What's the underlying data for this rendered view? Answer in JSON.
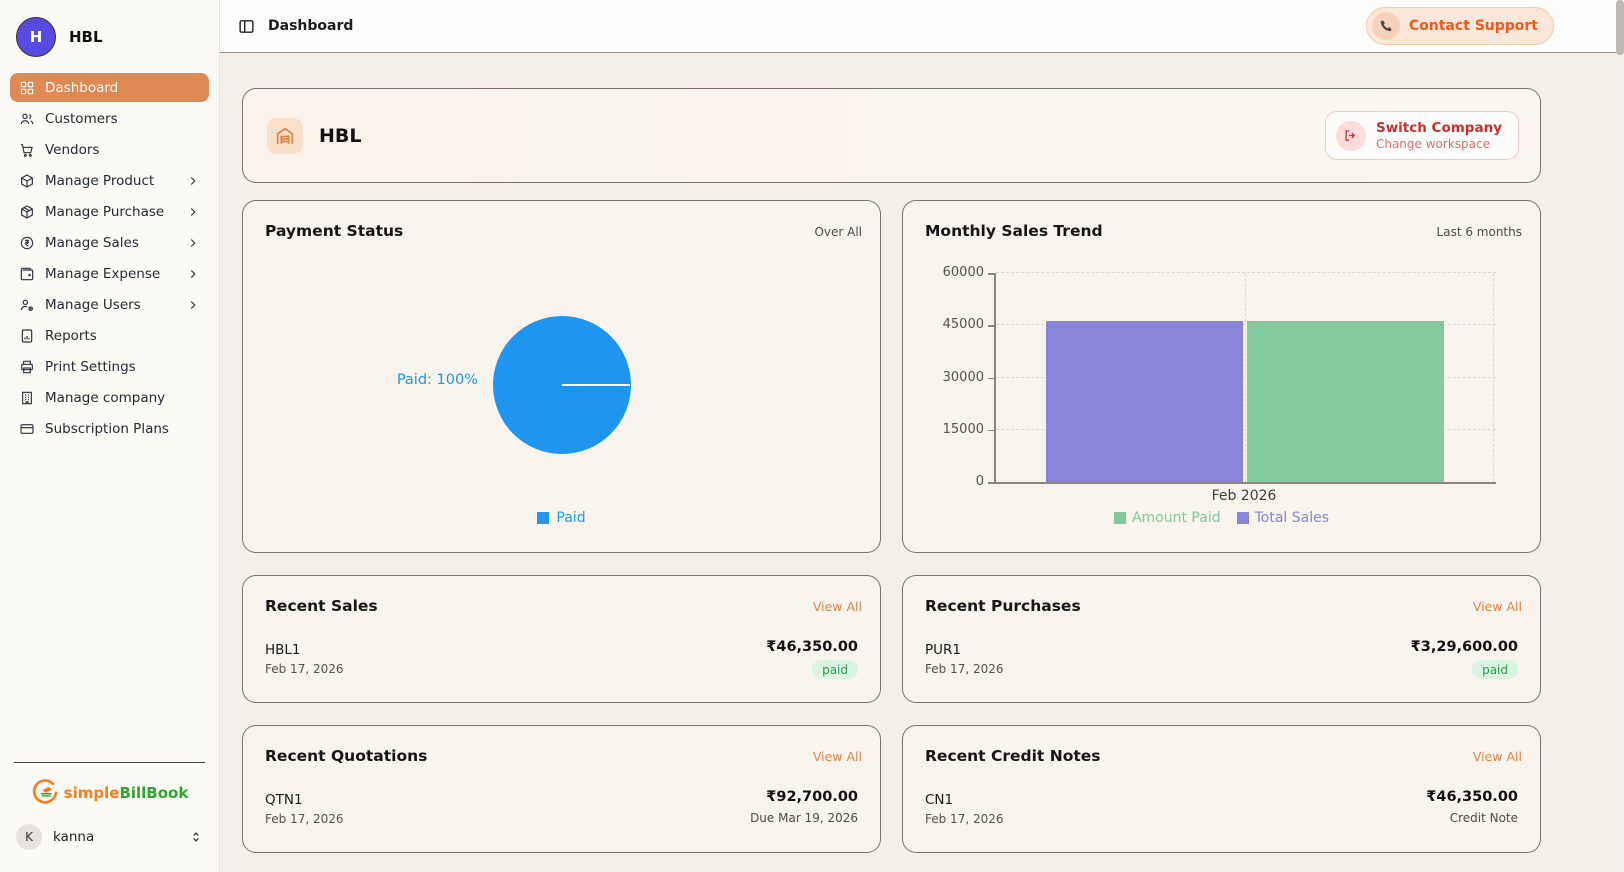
{
  "sidebar": {
    "company_initial": "H",
    "company_name": "HBL",
    "items": [
      {
        "label": "Dashboard",
        "active": true
      },
      {
        "label": "Customers"
      },
      {
        "label": "Vendors"
      },
      {
        "label": "Manage Product",
        "expandable": true
      },
      {
        "label": "Manage Purchase",
        "expandable": true
      },
      {
        "label": "Manage Sales",
        "expandable": true
      },
      {
        "label": "Manage Expense",
        "expandable": true
      },
      {
        "label": "Manage Users",
        "expandable": true
      },
      {
        "label": "Reports"
      },
      {
        "label": "Print Settings"
      },
      {
        "label": "Manage company"
      },
      {
        "label": "Subscription Plans"
      }
    ],
    "logo": {
      "first": "simple",
      "second": "BillBook"
    },
    "user": {
      "initial": "K",
      "name": "kanna"
    }
  },
  "topbar": {
    "breadcrumb": "Dashboard",
    "support_label": "Contact Support"
  },
  "company_card": {
    "name": "HBL",
    "switch_title": "Switch Company",
    "switch_subtitle": "Change workspace"
  },
  "cards": {
    "payment_status": {
      "title": "Payment Status",
      "period": "Over All",
      "slice_label": "Paid: 100%",
      "legend_label": "Paid"
    },
    "monthly_sales": {
      "title": "Monthly Sales Trend",
      "period": "Last 6 months"
    },
    "recent_sales": {
      "title": "Recent Sales",
      "view_all": "View All",
      "entry": {
        "id": "HBL1",
        "date": "Feb 17, 2026",
        "amount": "₹46,350.00",
        "status": "paid"
      }
    },
    "recent_purchases": {
      "title": "Recent Purchases",
      "view_all": "View All",
      "entry": {
        "id": "PUR1",
        "date": "Feb 17, 2026",
        "amount": "₹3,29,600.00",
        "status": "paid"
      }
    },
    "recent_quotations": {
      "title": "Recent Quotations",
      "view_all": "View All",
      "entry": {
        "id": "QTN1",
        "date": "Feb 17, 2026",
        "amount": "₹92,700.00",
        "subtext": "Due Mar 19, 2026"
      }
    },
    "recent_credit_notes": {
      "title": "Recent Credit Notes",
      "view_all": "View All",
      "entry": {
        "id": "CN1",
        "date": "Feb 17, 2026",
        "amount": "₹46,350.00",
        "subtext": "Credit Note"
      }
    }
  },
  "colors": {
    "sidebar_active_orange": "#dd8a54",
    "support_orange": "#f2581e",
    "switch_red": "#cf2c2c",
    "pie_blue": "#1e96f0",
    "bar_purple": "#8884d8",
    "bar_green": "#82ca9d",
    "paid_badge_green": "#27a24c",
    "view_all_orange": "#e0854e",
    "logo_orange": "#f57c20",
    "logo_green": "#2fa52f",
    "avatar_purple": "#5a4be0"
  },
  "chart_data": [
    {
      "type": "pie",
      "title": "Payment Status",
      "subtitle": "Over All",
      "slices": [
        {
          "label": "Paid",
          "value": 100,
          "color": "#1e96f0"
        }
      ],
      "slice_label": "Paid: 100%",
      "legend": [
        "Paid"
      ],
      "legend_position": "bottom"
    },
    {
      "type": "bar",
      "title": "Monthly Sales Trend",
      "subtitle": "Last 6 months",
      "categories": [
        "Feb 2026"
      ],
      "series": [
        {
          "name": "Total Sales",
          "values": [
            46350
          ],
          "color": "#8884d8"
        },
        {
          "name": "Amount Paid",
          "values": [
            46350
          ],
          "color": "#82ca9d"
        }
      ],
      "bar_order": [
        "Total Sales",
        "Amount Paid"
      ],
      "legend_order": [
        "Amount Paid",
        "Total Sales"
      ],
      "xlabel": "",
      "ylabel": "",
      "ylim": [
        0,
        60000
      ],
      "yticks": [
        0,
        15000,
        30000,
        45000,
        60000
      ],
      "grid": true,
      "legend_position": "bottom"
    }
  ]
}
